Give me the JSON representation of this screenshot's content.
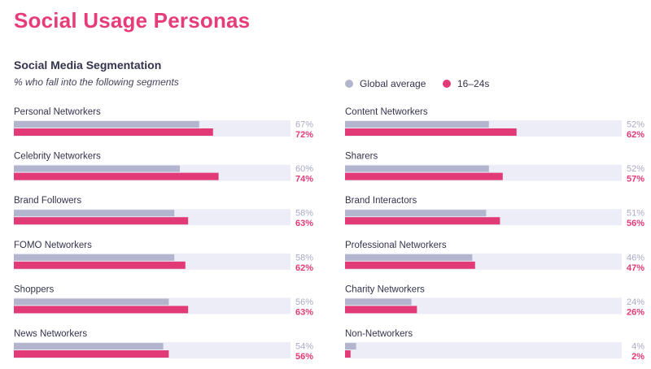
{
  "header": {
    "title": "Social Usage Personas",
    "subtitle": "Social Media Segmentation",
    "caption": "% who fall into the following segments"
  },
  "legend": [
    {
      "label": "Global average",
      "color": "#b3b5cf"
    },
    {
      "label": "16–24s",
      "color": "#e23a76"
    }
  ],
  "colors": {
    "global": "#b3b5cf",
    "youth": "#e23a76",
    "track": "#ecedf7",
    "global_text": "#a7a9c4",
    "youth_text": "#e23a76",
    "label_text": "#33334d"
  },
  "chart_data": {
    "type": "bar",
    "orientation": "horizontal",
    "unit": "%",
    "xlim": [
      0,
      100
    ],
    "series_names": [
      "Global average",
      "16–24s"
    ],
    "columns": [
      [
        {
          "label": "Personal Networkers",
          "global": 67,
          "youth": 72
        },
        {
          "label": "Celebrity Networkers",
          "global": 60,
          "youth": 74
        },
        {
          "label": "Brand Followers",
          "global": 58,
          "youth": 63
        },
        {
          "label": "FOMO Networkers",
          "global": 58,
          "youth": 62
        },
        {
          "label": "Shoppers",
          "global": 56,
          "youth": 63
        },
        {
          "label": "News Networkers",
          "global": 54,
          "youth": 56
        }
      ],
      [
        {
          "label": "Content Networkers",
          "global": 52,
          "youth": 62
        },
        {
          "label": "Sharers",
          "global": 52,
          "youth": 57
        },
        {
          "label": "Brand Interactors",
          "global": 51,
          "youth": 56
        },
        {
          "label": "Professional Networkers",
          "global": 46,
          "youth": 47
        },
        {
          "label": "Charity Networkers",
          "global": 24,
          "youth": 26
        },
        {
          "label": "Non-Networkers",
          "global": 4,
          "youth": 2
        }
      ]
    ]
  }
}
